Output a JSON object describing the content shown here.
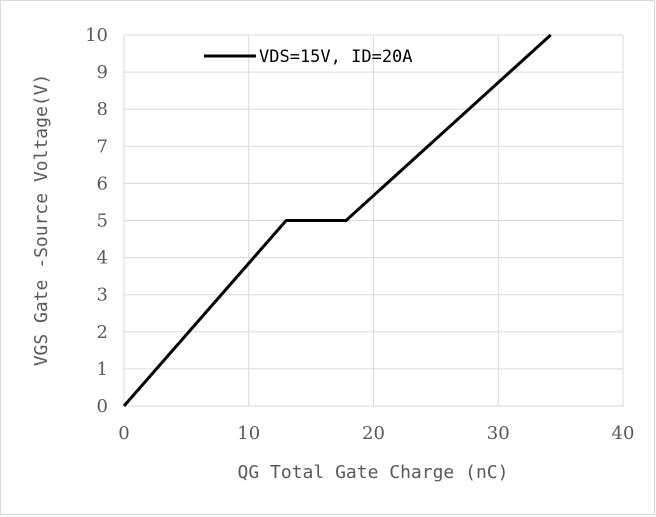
{
  "chart_data": {
    "type": "line",
    "title": "",
    "xlabel": "QG Total Gate Charge (nC)",
    "ylabel": "VGS  Gate -Source Voltage(V)",
    "xlim": [
      0,
      40
    ],
    "ylim": [
      0,
      10
    ],
    "x_ticks": [
      "0",
      "10",
      "20",
      "30",
      "40"
    ],
    "y_ticks": [
      "0",
      "1",
      "2",
      "3",
      "4",
      "5",
      "6",
      "7",
      "8",
      "9",
      "10"
    ],
    "grid": true,
    "legend_position": "top",
    "series": [
      {
        "name": "VDS=15V,  ID=20A",
        "color": "#000000",
        "x": [
          0,
          13,
          17.8,
          34.2
        ],
        "y": [
          0,
          5,
          5,
          10
        ]
      }
    ]
  }
}
